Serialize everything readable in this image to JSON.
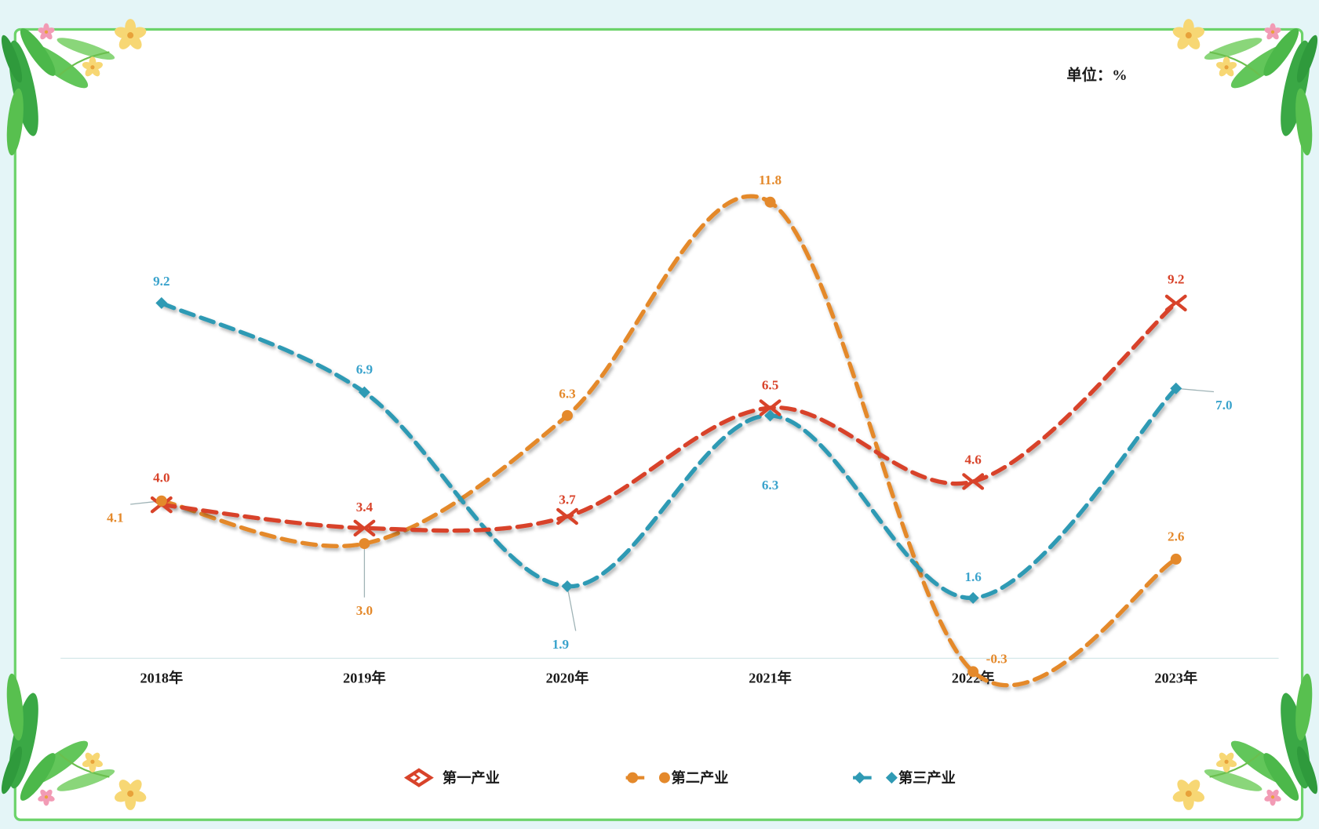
{
  "unit_label": "单位：%",
  "chart_data": {
    "type": "line",
    "categories": [
      "2018年",
      "2019年",
      "2020年",
      "2021年",
      "2022年",
      "2023年"
    ],
    "series": [
      {
        "name": "第一产业",
        "values": [
          4.0,
          3.4,
          3.7,
          6.5,
          4.6,
          9.2
        ],
        "color": "#d8432a",
        "label_color": "#d8432a",
        "marker": "arrow-cross"
      },
      {
        "name": "第二产业",
        "values": [
          4.1,
          3.0,
          6.3,
          11.8,
          -0.3,
          2.6
        ],
        "color": "#e4892b",
        "label_color": "#e4892b",
        "marker": "circle"
      },
      {
        "name": "第三产业",
        "values": [
          9.2,
          6.9,
          1.9,
          6.3,
          1.6,
          7.0
        ],
        "color": "#2f9ab4",
        "label_color": "#3aa3cc",
        "marker": "diamond"
      }
    ],
    "line_style": "dashed-smooth",
    "y_axis_visible": false,
    "grid": false,
    "legend_position": "bottom"
  },
  "colors": {
    "background": "#e4f5f7",
    "frame": "#6cd36a",
    "plot_background": "#ffffff",
    "baseline": "#d5e8ea"
  }
}
